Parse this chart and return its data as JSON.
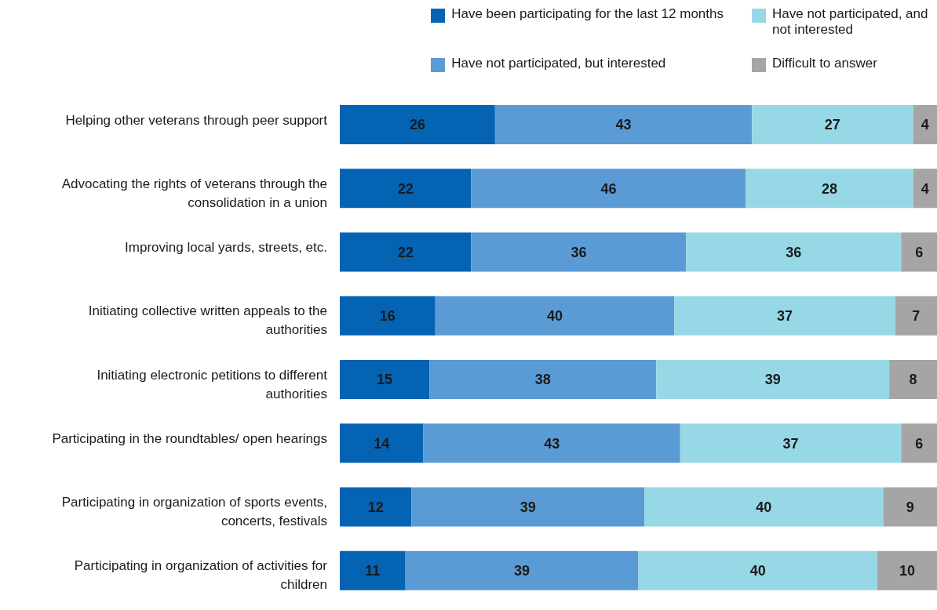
{
  "chart_data": {
    "type": "bar",
    "orientation": "horizontal",
    "stacked": true,
    "data_labels": true,
    "legend": "top right",
    "grid": false,
    "categories": [
      "Helping other veterans through peer support",
      "Advocating the rights of veterans through the consolidation in a union",
      "Improving local yards, streets, etc.",
      "Initiating collective written appeals to the authorities",
      "Initiating electronic petitions to different authorities",
      "Participating in the roundtables/ open hearings",
      "Participating in organization of sports events, concerts, festivals",
      "Participating in organization of activities for children"
    ],
    "series": [
      {
        "name": "Have been participating for the last 12 months",
        "color": "#0563b4",
        "values": [
          26,
          22,
          22,
          16,
          15,
          14,
          12,
          11
        ]
      },
      {
        "name": "Have not participated, but interested",
        "color": "#5b9bd5",
        "values": [
          43,
          46,
          36,
          40,
          38,
          43,
          39,
          39
        ]
      },
      {
        "name": "Have not participated, and not interested",
        "color": "#97d8e6",
        "values": [
          27,
          28,
          36,
          37,
          39,
          37,
          40,
          40
        ]
      },
      {
        "name": "Difficult to answer",
        "color": "#a5a5a5",
        "values": [
          4,
          4,
          6,
          7,
          8,
          6,
          9,
          10
        ]
      }
    ]
  }
}
